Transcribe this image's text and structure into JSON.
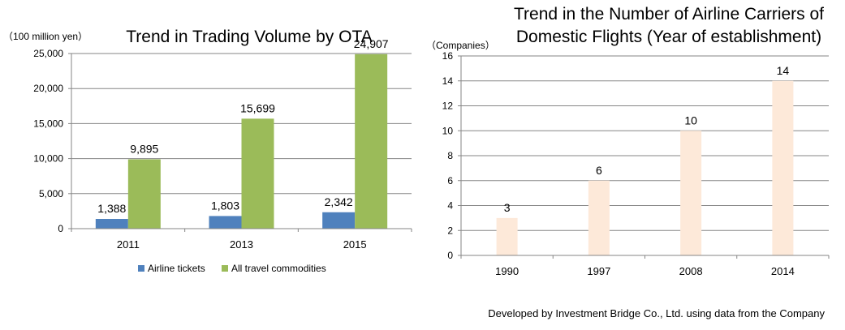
{
  "source_note": "Developed by Investment Bridge Co., Ltd. using data from the Company",
  "chart_data": [
    {
      "type": "bar",
      "title": "Trend in Trading Volume by OTA",
      "ylabel": "（100 million yen）",
      "xlabel": "",
      "categories": [
        "2011",
        "2013",
        "2015"
      ],
      "series": [
        {
          "name": "Airline tickets",
          "color": "#4f81bd",
          "values": [
            1388,
            1803,
            2342
          ],
          "labels": [
            "1,388",
            "1,803",
            "2,342"
          ]
        },
        {
          "name": "All travel commodities",
          "color": "#9bbb59",
          "values": [
            9895,
            15699,
            24907
          ],
          "labels": [
            "9,895",
            "15,699",
            "24,907"
          ]
        }
      ],
      "ylim": [
        0,
        25000
      ],
      "yticks": [
        0,
        5000,
        10000,
        15000,
        20000,
        25000
      ],
      "ytick_labels": [
        "0",
        "5,000",
        "10,000",
        "15,000",
        "20,000",
        "25,000"
      ],
      "grid": true,
      "legend": "bottom"
    },
    {
      "type": "bar",
      "title": "Trend in the Number of Airline Carriers of Domestic Flights (Year of establishment)",
      "title_lines": [
        "Trend in the Number of Airline Carriers of",
        "Domestic Flights (Year of establishment)"
      ],
      "ylabel": "（Companies）",
      "xlabel": "",
      "categories": [
        "1990",
        "1997",
        "2008",
        "2014"
      ],
      "series": [
        {
          "color": "#fde9d9",
          "values": [
            3,
            6,
            10,
            14
          ],
          "labels": [
            "3",
            "6",
            "10",
            "14"
          ]
        }
      ],
      "ylim": [
        0,
        16
      ],
      "yticks": [
        0,
        2,
        4,
        6,
        8,
        10,
        12,
        14,
        16
      ],
      "ytick_labels": [
        "0",
        "2",
        "4",
        "6",
        "8",
        "10",
        "12",
        "14",
        "16"
      ],
      "grid": true,
      "legend": "none"
    }
  ]
}
